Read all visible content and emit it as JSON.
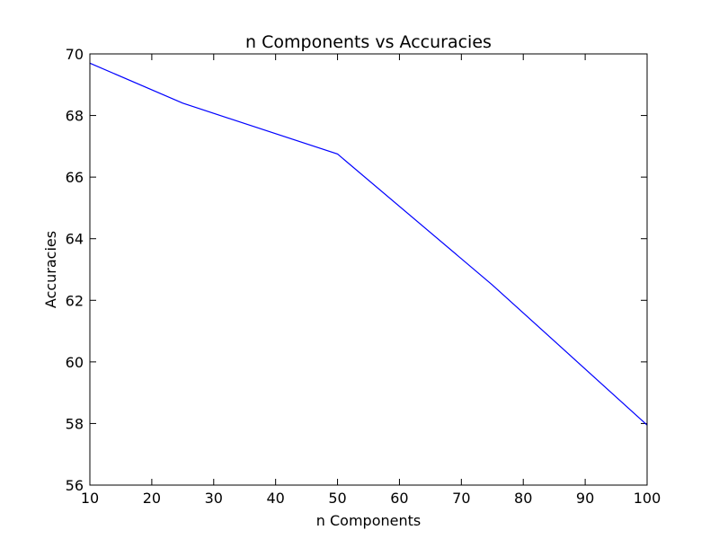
{
  "chart_data": {
    "type": "line",
    "title": "n Components vs Accuracies",
    "xlabel": "n Components",
    "ylabel": "Accuracies",
    "xlim": [
      10,
      100
    ],
    "ylim": [
      56,
      70
    ],
    "x_ticks": [
      10,
      20,
      30,
      40,
      50,
      60,
      70,
      80,
      90,
      100
    ],
    "y_ticks": [
      56,
      58,
      60,
      62,
      64,
      66,
      68,
      70
    ],
    "grid": false,
    "legend": "none",
    "series": [
      {
        "x": [
          10,
          25,
          50,
          75,
          100
        ],
        "y": [
          69.7,
          68.4,
          66.75,
          62.5,
          57.95
        ],
        "color": "#0000ff"
      }
    ]
  }
}
